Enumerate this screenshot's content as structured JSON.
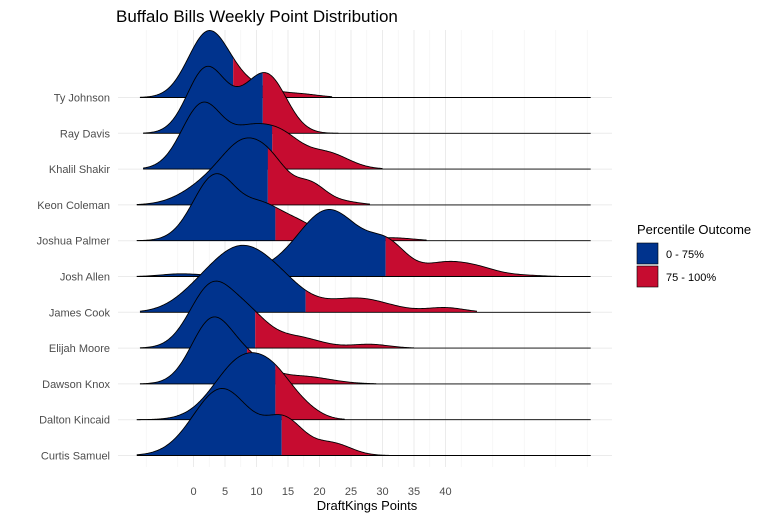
{
  "chart_data": {
    "type": "ridgeline",
    "title": "Buffalo Bills Weekly Point Distribution",
    "xlabel": "DraftKings Points",
    "ylabel": "",
    "xlim": [
      -9,
      64
    ],
    "xticks": [
      0,
      5,
      10,
      15,
      20,
      25,
      30,
      35,
      40
    ],
    "legend": {
      "title": "Percentile Outcome",
      "position": "right",
      "entries": [
        {
          "label": "0 - 75%",
          "color": "#00338D"
        },
        {
          "label": "75 - 100%",
          "color": "#C60C30"
        }
      ]
    },
    "grid": true,
    "players": [
      {
        "name": "Ty Johnson",
        "p75": 6.3,
        "min": -8.5,
        "max": 22.0,
        "peaks": [
          [
            2.3,
            3.2,
            1.0
          ],
          [
            8.0,
            4.0,
            0.2
          ],
          [
            17.0,
            3.0,
            0.05
          ]
        ]
      },
      {
        "name": "Ray Davis",
        "p75": 11.0,
        "min": -8.0,
        "max": 23.0,
        "peaks": [
          [
            2.0,
            3.0,
            1.0
          ],
          [
            12.0,
            3.0,
            0.8
          ],
          [
            8.0,
            3.0,
            0.3
          ]
        ]
      },
      {
        "name": "Khalil Shakir",
        "p75": 12.5,
        "min": -8.0,
        "max": 30.0,
        "peaks": [
          [
            1.5,
            3.3,
            1.0
          ],
          [
            9.0,
            3.0,
            0.5
          ],
          [
            14.0,
            3.0,
            0.45
          ],
          [
            21.0,
            3.5,
            0.25
          ]
        ]
      },
      {
        "name": "Keon Coleman",
        "p75": 11.8,
        "min": -9.0,
        "max": 28.0,
        "peaks": [
          [
            8.5,
            3.8,
            1.0
          ],
          [
            2.0,
            4.0,
            0.3
          ],
          [
            18.5,
            2.5,
            0.35
          ],
          [
            13.0,
            2.5,
            0.3
          ],
          [
            24.0,
            2.5,
            0.05
          ]
        ]
      },
      {
        "name": "Joshua Palmer",
        "p75": 13.0,
        "min": -9.0,
        "max": 37.0,
        "peaks": [
          [
            3.5,
            3.5,
            1.0
          ],
          [
            11.0,
            3.0,
            0.45
          ],
          [
            16.5,
            3.0,
            0.25
          ],
          [
            24.0,
            3.5,
            0.06
          ],
          [
            32.0,
            3.0,
            0.04
          ]
        ]
      },
      {
        "name": "Josh Allen",
        "p75": 30.5,
        "min": -9.0,
        "max": 58.0,
        "peaks": [
          [
            21.5,
            5.0,
            1.0
          ],
          [
            31.0,
            3.0,
            0.4
          ],
          [
            40.0,
            3.5,
            0.2
          ],
          [
            45.5,
            3.0,
            0.1
          ],
          [
            52.0,
            3.0,
            0.02
          ],
          [
            -2.0,
            3.0,
            0.04
          ],
          [
            10.0,
            4.0,
            0.06
          ]
        ]
      },
      {
        "name": "James Cook",
        "p75": 17.8,
        "min": -8.5,
        "max": 45.0,
        "peaks": [
          [
            7.5,
            4.5,
            1.0
          ],
          [
            1.0,
            4.0,
            0.3
          ],
          [
            14.0,
            4.0,
            0.4
          ],
          [
            26.0,
            5.0,
            0.25
          ],
          [
            40.0,
            3.0,
            0.08
          ]
        ]
      },
      {
        "name": "Elijah Moore",
        "p75": 9.8,
        "min": -8.5,
        "max": 35.0,
        "peaks": [
          [
            3.0,
            3.5,
            1.0
          ],
          [
            9.0,
            3.0,
            0.4
          ],
          [
            16.0,
            4.0,
            0.18
          ],
          [
            28.0,
            3.0,
            0.06
          ]
        ]
      },
      {
        "name": "Dawson Knox",
        "p75": 8.5,
        "min": -8.5,
        "max": 29.0,
        "peaks": [
          [
            3.0,
            3.3,
            1.0
          ],
          [
            9.0,
            3.0,
            0.3
          ],
          [
            17.0,
            4.5,
            0.12
          ]
        ]
      },
      {
        "name": "Dalton Kincaid",
        "p75": 13.0,
        "min": -9.0,
        "max": 24.0,
        "peaks": [
          [
            8.0,
            4.5,
            1.0
          ],
          [
            13.5,
            3.0,
            0.35
          ],
          [
            18.0,
            2.5,
            0.1
          ]
        ]
      },
      {
        "name": "Curtis Samuel",
        "p75": 14.0,
        "min": -9.0,
        "max": 31.0,
        "peaks": [
          [
            4.5,
            4.5,
            1.0
          ],
          [
            14.5,
            3.0,
            0.5
          ],
          [
            22.0,
            3.0,
            0.18
          ]
        ]
      }
    ]
  }
}
